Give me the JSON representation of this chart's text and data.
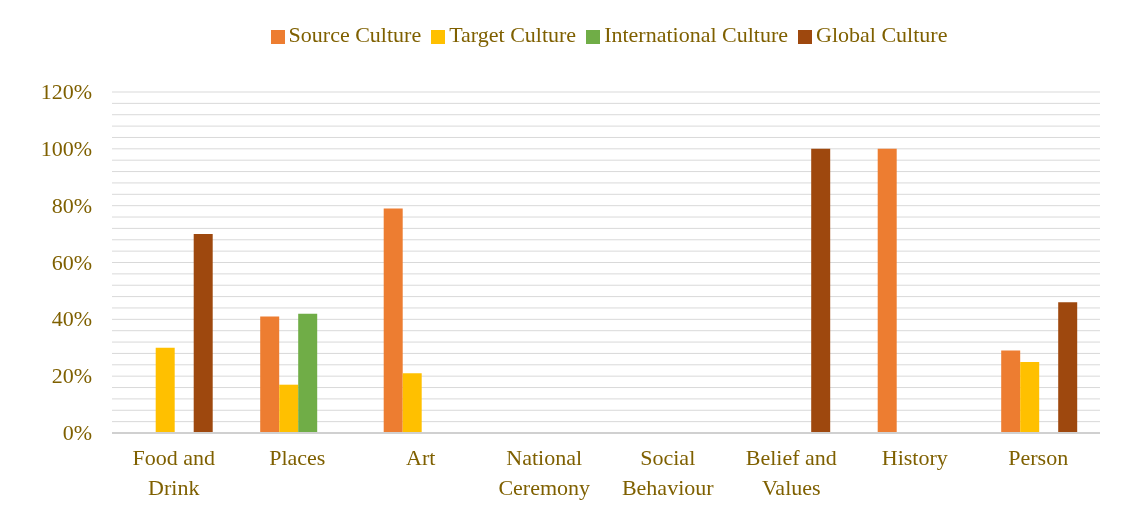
{
  "chart_data": {
    "type": "bar",
    "categories": [
      "Food and Drink",
      "Places",
      "Art",
      "National Ceremony",
      "Social Behaviour",
      "Belief and Values",
      "History",
      "Person"
    ],
    "series": [
      {
        "name": "Source Culture",
        "color": "#ed7d31",
        "values": [
          0,
          41,
          79,
          0,
          0,
          0,
          100,
          29
        ]
      },
      {
        "name": "Target Culture",
        "color": "#ffc000",
        "values": [
          30,
          17,
          21,
          0,
          0,
          0,
          0,
          25
        ]
      },
      {
        "name": "International Culture",
        "color": "#70ad47",
        "values": [
          0,
          42,
          0,
          0,
          0,
          0,
          0,
          0
        ]
      },
      {
        "name": "Global Culture",
        "color": "#9e480e",
        "values": [
          70,
          0,
          0,
          0,
          0,
          100,
          0,
          46
        ]
      }
    ],
    "ylim": [
      0,
      120
    ],
    "yticks": [
      {
        "value": 0,
        "label": "0%"
      },
      {
        "value": 4,
        "label": null
      },
      {
        "value": 8,
        "label": null
      },
      {
        "value": 12,
        "label": null
      },
      {
        "value": 16,
        "label": null
      },
      {
        "value": 20,
        "label": "20%"
      },
      {
        "value": 24,
        "label": null
      },
      {
        "value": 28,
        "label": null
      },
      {
        "value": 32,
        "label": null
      },
      {
        "value": 36,
        "label": null
      },
      {
        "value": 40,
        "label": "40%"
      },
      {
        "value": 44,
        "label": null
      },
      {
        "value": 48,
        "label": null
      },
      {
        "value": 52,
        "label": null
      },
      {
        "value": 56,
        "label": null
      },
      {
        "value": 60,
        "label": "60%"
      },
      {
        "value": 64,
        "label": null
      },
      {
        "value": 68,
        "label": null
      },
      {
        "value": 72,
        "label": null
      },
      {
        "value": 76,
        "label": null
      },
      {
        "value": 80,
        "label": "80%"
      },
      {
        "value": 84,
        "label": null
      },
      {
        "value": 88,
        "label": null
      },
      {
        "value": 92,
        "label": null
      },
      {
        "value": 96,
        "label": null
      },
      {
        "value": 100,
        "label": "100%"
      },
      {
        "value": 104,
        "label": null
      },
      {
        "value": 108,
        "label": null
      },
      {
        "value": 112,
        "label": null
      },
      {
        "value": 116,
        "label": null
      },
      {
        "value": 120,
        "label": "120%"
      }
    ],
    "grid": "y",
    "legend": "top"
  }
}
